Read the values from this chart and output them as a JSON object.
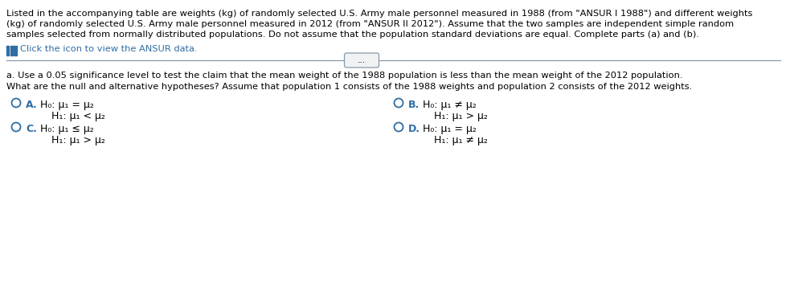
{
  "bg_color": "#ffffff",
  "text_color": "#000000",
  "blue_color": "#2e6da4",
  "para_line1": "Listed in the accompanying table are weights (kg) of randomly selected U.S. Army male personnel measured in 1988 (from \"ANSUR I 1988\") and different weights",
  "para_line2": "(kg) of randomly selected U.S. Army male personnel measured in 2012 (from \"ANSUR II 2012\"). Assume that the two samples are independent simple random",
  "para_line3": "samples selected from normally distributed populations. Do not assume that the population standard deviations are equal. Complete parts (a) and (b).",
  "click_text": "Click the icon to view the ANSUR data.",
  "part_a": "a. Use a 0.05 significance level to test the claim that the mean weight of the 1988 population is less than the mean weight of the 2012 population.",
  "what_text": "What are the null and alternative hypotheses? Assume that population 1 consists of the 1988 weights and population 2 consists of the 2012 weights.",
  "option_A_H0": "H₀: μ₁ = μ₂",
  "option_A_H1": "H₁: μ₁ < μ₂",
  "option_B_H0": "H₀: μ₁ ≠ μ₂",
  "option_B_H1": "H₁: μ₁ > μ₂",
  "option_C_H0": "H₀: μ₁ ≤ μ₂",
  "option_C_H1": "H₁: μ₁ > μ₂",
  "option_D_H0": "H₀: μ₁ = μ₂",
  "option_D_H1": "H₁: μ₁ ≠ μ₂",
  "label_A": "A.",
  "label_B": "B.",
  "label_C": "C.",
  "label_D": "D.",
  "sep_line_color": "#8899aa",
  "btn_color": "#f0f2f4",
  "btn_border": "#8899aa",
  "dots_text": "..."
}
